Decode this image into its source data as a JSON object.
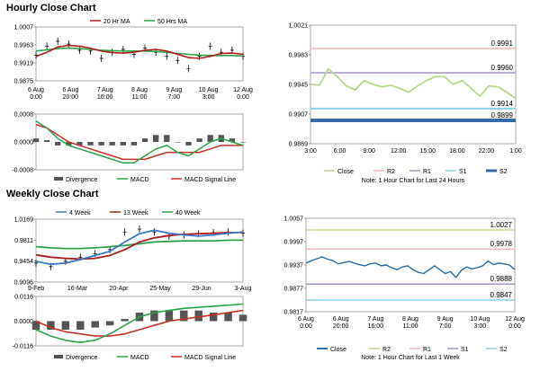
{
  "titles": {
    "hourly": "Hourly Close Chart",
    "weekly": "Weekly Close Chart"
  },
  "colors": {
    "ma20": "#b01c1c",
    "ma50": "#2da24a",
    "ma4": "#3e78c8",
    "ma13": "#b01c1c",
    "ma40": "#2da24a",
    "macd": "#2da24a",
    "signal": "#c8302a",
    "divergence": "#555555",
    "close": "#b7d98a",
    "r2": "#f2b8b8",
    "r1": "#a793c6",
    "s1": "#8fd0e6",
    "s2": "#3868a8",
    "wclose": "#2a6aa6",
    "wr2": "#c8d88a"
  },
  "chart_data": [
    {
      "id": "hourly-price",
      "type": "line",
      "yticks": [
        "1.0007",
        "0.9963",
        "0.9919",
        "0.9875"
      ],
      "ylim": [
        0.9875,
        1.0007
      ],
      "xticks": [
        {
          "l1": "6 Aug",
          "l2": "0:00"
        },
        {
          "l1": "6 Aug",
          "l2": "20:00"
        },
        {
          "l1": "7 Aug",
          "l2": "16:00"
        },
        {
          "l1": "8 Aug",
          "l2": "11:00"
        },
        {
          "l1": "9 Aug",
          "l2": "7:00"
        },
        {
          "l1": "10 Aug",
          "l2": "3:00"
        },
        {
          "l1": "12 Aug",
          "l2": "0:00"
        }
      ],
      "legend": [
        "20 Hr MA",
        "50 Hrs MA"
      ],
      "series": [
        {
          "name": "20 Hr MA",
          "values": [
            0.9935,
            0.9945,
            0.9958,
            0.9962,
            0.996,
            0.9955,
            0.9948,
            0.9944,
            0.9943,
            0.9945,
            0.995,
            0.9952,
            0.9948,
            0.994,
            0.9932,
            0.993,
            0.9935,
            0.9942,
            0.9943,
            0.994
          ]
        },
        {
          "name": "50 Hrs MA",
          "values": [
            0.9948,
            0.9951,
            0.9954,
            0.9955,
            0.9954,
            0.9952,
            0.995,
            0.9949,
            0.9948,
            0.9948,
            0.9948,
            0.9947,
            0.9945,
            0.9942,
            0.994,
            0.9938,
            0.9937,
            0.9937,
            0.9937,
            0.9936
          ]
        },
        {
          "name": "Close",
          "values": [
            0.9938,
            0.996,
            0.9972,
            0.9965,
            0.995,
            0.9948,
            0.993,
            0.9945,
            0.9952,
            0.994,
            0.9955,
            0.9945,
            0.9935,
            0.9925,
            0.9905,
            0.9935,
            0.996,
            0.9945,
            0.995,
            0.9935
          ]
        }
      ]
    },
    {
      "id": "hourly-macd",
      "type": "line",
      "yticks": [
        "0.0008",
        "0.0000",
        "-0.0008"
      ],
      "ylim": [
        -0.0008,
        0.0008
      ],
      "legend": [
        "Divergence",
        "MACD",
        "MACD Signal Line"
      ],
      "series": [
        {
          "name": "MACD",
          "values": [
            0.0006,
            0.0004,
            0.0001,
            -0.0001,
            -0.0002,
            -0.0003,
            -0.0004,
            -0.0005,
            -0.0006,
            -0.0006,
            -0.0004,
            -0.0002,
            -0.0001,
            -0.0003,
            -0.0004,
            -0.0002,
            0.0,
            0.0001,
            0.0,
            -0.0001
          ]
        },
        {
          "name": "MACD Signal Line",
          "values": [
            0.0005,
            0.0004,
            0.0002,
            0.0,
            -0.0001,
            -0.0002,
            -0.0003,
            -0.0004,
            -0.0005,
            -0.0005,
            -0.0005,
            -0.0004,
            -0.0003,
            -0.0003,
            -0.0003,
            -0.0003,
            -0.0002,
            -0.0001,
            -0.0001,
            -0.0001
          ]
        },
        {
          "name": "Divergence",
          "values": [
            0.0001,
            5e-05,
            -0.0001,
            -0.0001,
            -0.0001,
            -0.0001,
            -0.0001,
            -0.0001,
            -0.0001,
            -0.0001,
            0.0001,
            0.0002,
            0.0002,
            0.0,
            -0.0001,
            0.0001,
            0.0002,
            0.0002,
            0.0001,
            0.0
          ]
        }
      ]
    },
    {
      "id": "hourly-levels",
      "type": "line",
      "yticks": [
        "1.0021",
        "0.9983",
        "0.9945",
        "0.9907",
        "0.9869"
      ],
      "ylim": [
        0.9869,
        1.0021
      ],
      "xticks": [
        "3:00",
        "6:00",
        "9:00",
        "12:00",
        "15:00",
        "18:00",
        "22:00",
        "1:00"
      ],
      "legend": [
        "Close",
        "R2",
        "R1",
        "S1",
        "S2"
      ],
      "note": "Note: 1 Hour Chart for Last 24 Hours",
      "levels": [
        {
          "name": "R2",
          "value": 0.9991,
          "label": "0.9991"
        },
        {
          "name": "R1",
          "value": 0.996,
          "label": "0.9960"
        },
        {
          "name": "S1",
          "value": 0.9914,
          "label": "0.9914"
        },
        {
          "name": "S2",
          "value": 0.9899,
          "label": "0.9899"
        }
      ],
      "series": [
        {
          "name": "Close",
          "values": [
            0.9945,
            0.9944,
            0.9965,
            0.9955,
            0.9943,
            0.9938,
            0.995,
            0.9945,
            0.9942,
            0.9944,
            0.994,
            0.9935,
            0.9943,
            0.995,
            0.9955,
            0.9955,
            0.9945,
            0.995,
            0.994,
            0.993,
            0.9943,
            0.9942,
            0.9935,
            0.9927
          ]
        }
      ]
    },
    {
      "id": "weekly-price",
      "type": "line",
      "yticks": [
        "1.0169",
        "0.9811",
        "0.9454",
        "0.9096"
      ],
      "ylim": [
        0.9096,
        1.0169
      ],
      "xticks": [
        "9-Feb",
        "16-Mar",
        "20-Apr",
        "25-May",
        "29-Jun",
        "3-Aug"
      ],
      "legend": [
        "4 Week",
        "13 Week",
        "40 Week"
      ],
      "series": [
        {
          "name": "4 Week",
          "values": [
            0.945,
            0.94,
            0.942,
            0.948,
            0.955,
            0.962,
            0.978,
            0.992,
            0.998,
            0.993,
            0.99,
            0.988,
            0.99,
            0.993,
            0.995
          ]
        },
        {
          "name": "13 Week",
          "values": [
            0.956,
            0.952,
            0.95,
            0.949,
            0.95,
            0.955,
            0.965,
            0.978,
            0.985,
            0.989,
            0.991,
            0.992,
            0.993,
            0.994,
            0.994
          ]
        },
        {
          "name": "40 Week",
          "values": [
            0.97,
            0.968,
            0.967,
            0.967,
            0.968,
            0.97,
            0.972,
            0.975,
            0.978,
            0.979,
            0.98,
            0.98,
            0.98,
            0.981,
            0.981
          ]
        },
        {
          "name": "Close",
          "values": [
            0.942,
            0.936,
            0.945,
            0.952,
            0.958,
            0.965,
            0.995,
            1.0,
            0.995,
            0.988,
            0.99,
            0.992,
            0.994,
            0.995,
            0.993
          ]
        }
      ]
    },
    {
      "id": "weekly-macd",
      "type": "line",
      "yticks": [
        "0.0116",
        "0.0000",
        "-0.0116"
      ],
      "ylim": [
        -0.0116,
        0.0116
      ],
      "legend": [
        "Divergence",
        "MACD",
        "MACD Signal Line"
      ],
      "series": [
        {
          "name": "MACD",
          "values": [
            -0.004,
            -0.007,
            -0.009,
            -0.01,
            -0.009,
            -0.006,
            -0.002,
            0.002,
            0.004,
            0.005,
            0.006,
            0.0065,
            0.007,
            0.0075,
            0.008
          ]
        },
        {
          "name": "MACD Signal Line",
          "values": [
            0.0,
            -0.003,
            -0.005,
            -0.006,
            -0.007,
            -0.007,
            -0.006,
            -0.004,
            -0.002,
            0.0,
            0.001,
            0.002,
            0.003,
            0.004,
            0.005
          ]
        },
        {
          "name": "Divergence",
          "values": [
            -0.004,
            -0.004,
            -0.004,
            -0.004,
            -0.003,
            -0.002,
            0.001,
            0.004,
            0.005,
            0.005,
            0.005,
            0.005,
            0.004,
            0.004,
            0.003
          ]
        }
      ]
    },
    {
      "id": "weekly-levels",
      "type": "line",
      "yticks": [
        "1.0057",
        "0.9997",
        "0.9937",
        "0.9877",
        "0.9817"
      ],
      "ylim": [
        0.9817,
        1.0057
      ],
      "xticks": [
        {
          "l1": "6 Aug",
          "l2": "0:00"
        },
        {
          "l1": "6 Aug",
          "l2": "20:00"
        },
        {
          "l1": "7 Aug",
          "l2": "16:00"
        },
        {
          "l1": "8 Aug",
          "l2": "11:00"
        },
        {
          "l1": "9 Aug",
          "l2": "7:00"
        },
        {
          "l1": "10 Aug",
          "l2": "3:00"
        },
        {
          "l1": "12 Aug",
          "l2": "0:00"
        }
      ],
      "legend": [
        "Close",
        "R2",
        "R1",
        "S1",
        "S2"
      ],
      "note": "Note: 1 Hour Chart for Last 1 Week",
      "levels": [
        {
          "name": "R2",
          "value": 1.0027,
          "label": "1.0027"
        },
        {
          "name": "R1",
          "value": 0.9978,
          "label": "0.9978"
        },
        {
          "name": "S1",
          "value": 0.9888,
          "label": "0.9888"
        },
        {
          "name": "S2",
          "value": 0.9847,
          "label": "0.9847"
        }
      ],
      "series": [
        {
          "name": "Close",
          "values": [
            0.9942,
            0.9948,
            0.9953,
            0.9958,
            0.9952,
            0.9948,
            0.994,
            0.9943,
            0.9946,
            0.9942,
            0.9938,
            0.9935,
            0.994,
            0.9942,
            0.9935,
            0.9937,
            0.993,
            0.9925,
            0.9932,
            0.9935,
            0.9925,
            0.9918,
            0.9915,
            0.9925,
            0.9935,
            0.9925,
            0.9915,
            0.992,
            0.9905,
            0.9923,
            0.9932,
            0.9927,
            0.993,
            0.9935,
            0.9947,
            0.9938,
            0.9942,
            0.994,
            0.9937,
            0.9925
          ]
        }
      ]
    }
  ]
}
